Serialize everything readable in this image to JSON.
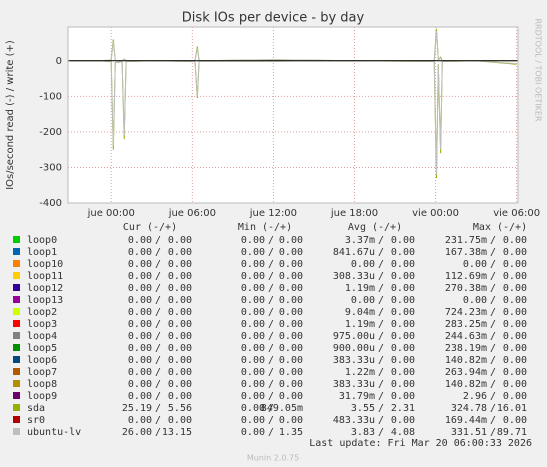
{
  "chart_data": {
    "type": "line",
    "title": "Disk IOs per device - by day",
    "y_label": "IOs/second read (-) / write (+)",
    "side_note": "RRDTOOL / TOBI OETIKER",
    "footer": "Munin 2.0.75",
    "last_update": "Last update: Fri Mar 20 06:00:33 2026",
    "xlim": [
      -3.2,
      30.1
    ],
    "xticks": [
      {
        "value": 0,
        "label": "jue 00:00"
      },
      {
        "value": 6,
        "label": "jue 06:00"
      },
      {
        "value": 12,
        "label": "jue 12:00"
      },
      {
        "value": 18,
        "label": "jue 18:00"
      },
      {
        "value": 24,
        "label": "vie 00:00"
      },
      {
        "value": 30,
        "label": "vie 06:00"
      }
    ],
    "ylim": [
      -400,
      95
    ],
    "yticks": [
      0,
      -100,
      -200,
      -300,
      -400
    ],
    "grid": true,
    "legend_columns": [
      "Cur (-/+)",
      "Min (-/+)",
      "Avg (-/+)",
      "Max (-/+)"
    ],
    "legend_separator": "/",
    "x": [
      -3,
      -1,
      0,
      0.15,
      0.3,
      0.8,
      0.96,
      1.1,
      3,
      6.2,
      6.37,
      6.5,
      12,
      18,
      23.9,
      24.07,
      24.2,
      24.37,
      24.5,
      27,
      30
    ],
    "series": [
      {
        "name": "loop0",
        "color": "#00cc00",
        "cur": [
          "0.00",
          "0.00"
        ],
        "min": [
          "0.00",
          "0.00"
        ],
        "avg": [
          "3.37m",
          "0.00"
        ],
        "max": [
          "231.75m",
          "0.00"
        ]
      },
      {
        "name": "loop1",
        "color": "#0066b3",
        "cur": [
          "0.00",
          "0.00"
        ],
        "min": [
          "0.00",
          "0.00"
        ],
        "avg": [
          "841.67u",
          "0.00"
        ],
        "max": [
          "167.38m",
          "0.00"
        ]
      },
      {
        "name": "loop10",
        "color": "#ff8000",
        "cur": [
          "0.00",
          "0.00"
        ],
        "min": [
          "0.00",
          "0.00"
        ],
        "avg": [
          "0.00",
          "0.00"
        ],
        "max": [
          "0.00",
          "0.00"
        ]
      },
      {
        "name": "loop11",
        "color": "#ffcc00",
        "cur": [
          "0.00",
          "0.00"
        ],
        "min": [
          "0.00",
          "0.00"
        ],
        "avg": [
          "308.33u",
          "0.00"
        ],
        "max": [
          "112.69m",
          "0.00"
        ]
      },
      {
        "name": "loop12",
        "color": "#330099",
        "cur": [
          "0.00",
          "0.00"
        ],
        "min": [
          "0.00",
          "0.00"
        ],
        "avg": [
          "1.19m",
          "0.00"
        ],
        "max": [
          "270.38m",
          "0.00"
        ]
      },
      {
        "name": "loop13",
        "color": "#990099",
        "cur": [
          "0.00",
          "0.00"
        ],
        "min": [
          "0.00",
          "0.00"
        ],
        "avg": [
          "0.00",
          "0.00"
        ],
        "max": [
          "0.00",
          "0.00"
        ]
      },
      {
        "name": "loop2",
        "color": "#ccff00",
        "cur": [
          "0.00",
          "0.00"
        ],
        "min": [
          "0.00",
          "0.00"
        ],
        "avg": [
          "9.04m",
          "0.00"
        ],
        "max": [
          "724.23m",
          "0.00"
        ]
      },
      {
        "name": "loop3",
        "color": "#ff0000",
        "cur": [
          "0.00",
          "0.00"
        ],
        "min": [
          "0.00",
          "0.00"
        ],
        "avg": [
          "1.19m",
          "0.00"
        ],
        "max": [
          "283.25m",
          "0.00"
        ]
      },
      {
        "name": "loop4",
        "color": "#808080",
        "cur": [
          "0.00",
          "0.00"
        ],
        "min": [
          "0.00",
          "0.00"
        ],
        "avg": [
          "975.00u",
          "0.00"
        ],
        "max": [
          "244.63m",
          "0.00"
        ]
      },
      {
        "name": "loop5",
        "color": "#008f00",
        "cur": [
          "0.00",
          "0.00"
        ],
        "min": [
          "0.00",
          "0.00"
        ],
        "avg": [
          "900.00u",
          "0.00"
        ],
        "max": [
          "238.19m",
          "0.00"
        ]
      },
      {
        "name": "loop6",
        "color": "#00487d",
        "cur": [
          "0.00",
          "0.00"
        ],
        "min": [
          "0.00",
          "0.00"
        ],
        "avg": [
          "383.33u",
          "0.00"
        ],
        "max": [
          "140.82m",
          "0.00"
        ]
      },
      {
        "name": "loop7",
        "color": "#b35a00",
        "cur": [
          "0.00",
          "0.00"
        ],
        "min": [
          "0.00",
          "0.00"
        ],
        "avg": [
          "1.22m",
          "0.00"
        ],
        "max": [
          "263.94m",
          "0.00"
        ]
      },
      {
        "name": "loop8",
        "color": "#b38f00",
        "cur": [
          "0.00",
          "0.00"
        ],
        "min": [
          "0.00",
          "0.00"
        ],
        "avg": [
          "383.33u",
          "0.00"
        ],
        "max": [
          "140.82m",
          "0.00"
        ]
      },
      {
        "name": "loop9",
        "color": "#6b006b",
        "cur": [
          "0.00",
          "0.00"
        ],
        "min": [
          "0.00",
          "0.00"
        ],
        "avg": [
          "31.79m",
          "0.00"
        ],
        "max": [
          "2.96",
          "0.00"
        ]
      },
      {
        "name": "sda",
        "color": "#8fb300",
        "cur": [
          "25.19",
          "5.56"
        ],
        "min": [
          "0.00",
          "849.05m"
        ],
        "avg": [
          "3.55",
          "2.31"
        ],
        "max": [
          "324.78",
          "16.01"
        ],
        "read_values": [
          0,
          0,
          -2,
          -250,
          -5,
          -3,
          -220,
          -2,
          0,
          -2,
          -105,
          -1,
          -1,
          0,
          -2,
          -330,
          -10,
          -260,
          -2,
          0,
          -10
        ],
        "values": [
          0,
          0,
          2,
          60,
          0,
          0,
          5,
          0,
          0,
          1,
          40,
          0,
          3,
          0,
          0,
          90,
          2,
          10,
          0,
          0,
          0
        ]
      },
      {
        "name": "sr0",
        "color": "#b30000",
        "cur": [
          "0.00",
          "0.00"
        ],
        "min": [
          "0.00",
          "0.00"
        ],
        "avg": [
          "483.33u",
          "0.00"
        ],
        "max": [
          "169.44m",
          "0.00"
        ]
      },
      {
        "name": "ubuntu-lv",
        "color": "#bebebe",
        "cur": [
          "26.00",
          "13.15"
        ],
        "min": [
          "0.00",
          "1.35"
        ],
        "avg": [
          "3.83",
          "4.08"
        ],
        "max": [
          "331.51",
          "89.71"
        ],
        "read_values": [
          0,
          0,
          -2,
          -240,
          -5,
          -3,
          -210,
          -2,
          0,
          -2,
          -100,
          -1,
          -1,
          0,
          -2,
          -320,
          -10,
          -250,
          -2,
          0,
          -8
        ],
        "values": [
          0,
          0,
          2,
          55,
          0,
          0,
          5,
          0,
          0,
          1,
          35,
          0,
          3,
          0,
          0,
          85,
          2,
          8,
          0,
          0,
          0
        ]
      }
    ]
  }
}
